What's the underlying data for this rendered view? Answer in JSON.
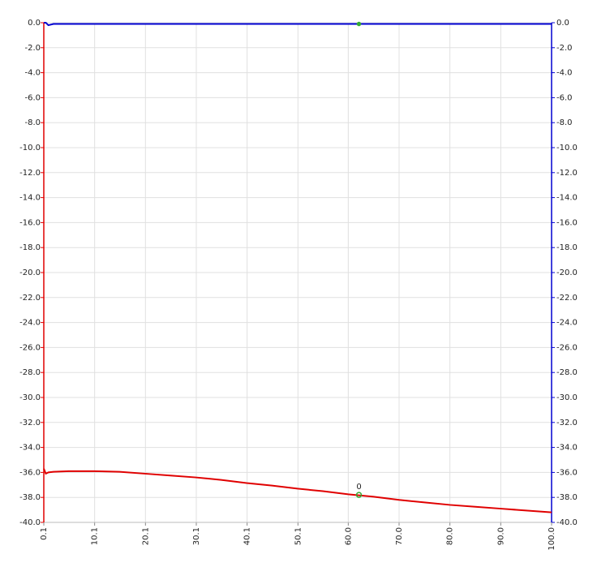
{
  "chart_data": {
    "type": "line",
    "x": [
      0.1,
      0.5,
      1,
      2,
      5,
      10,
      15,
      20,
      25,
      30,
      35,
      40,
      45,
      50,
      55,
      60,
      65,
      70,
      75,
      80,
      85,
      90,
      95,
      100
    ],
    "series": [
      {
        "color": "#e00000",
        "values": [
          -35.7,
          -36.1,
          -36.0,
          -35.95,
          -35.9,
          -35.9,
          -35.95,
          -36.1,
          -36.25,
          -36.4,
          -36.6,
          -36.85,
          -37.05,
          -37.3,
          -37.5,
          -37.75,
          -37.95,
          -38.2,
          -38.4,
          -38.6,
          -38.75,
          -38.9,
          -39.05,
          -39.2
        ]
      },
      {
        "color": "#0000d0",
        "axis": "y2",
        "values": [
          0,
          0,
          -0.2,
          -0.1,
          -0.1,
          -0.1,
          -0.1,
          -0.1,
          -0.1,
          -0.1,
          -0.1,
          -0.1,
          -0.1,
          -0.1,
          -0.1,
          -0.1,
          -0.1,
          -0.1,
          -0.1,
          -0.1,
          -0.1,
          -0.1,
          -0.1,
          -0.1
        ]
      }
    ],
    "markers": [
      {
        "x": 62.1,
        "value": -37.8,
        "label": "0",
        "color": "#33aa33"
      },
      {
        "x": 62.1,
        "value": -0.1,
        "axis": "y2",
        "color": "#33aa33"
      }
    ],
    "xlim": [
      0.1,
      100
    ],
    "xticks": [
      0.1,
      10.1,
      20.1,
      30.1,
      40.1,
      50.1,
      {
        "value": 60,
        "label": "60.0"
      },
      {
        "value": 70,
        "label": "70.0"
      },
      {
        "value": 80,
        "label": "80.0"
      },
      {
        "value": 90,
        "label": "90.0"
      },
      {
        "value": 100,
        "label": "100.0"
      }
    ],
    "ylim": [
      -40,
      0
    ],
    "yticks": [
      {
        "value": 0,
        "label": "0.0"
      },
      {
        "value": -2,
        "label": "-2.0"
      },
      {
        "value": -4,
        "label": "-4.0"
      },
      {
        "value": -6,
        "label": "-6.0"
      },
      {
        "value": -8,
        "label": "-8.0"
      },
      {
        "value": -10,
        "label": "-10.0"
      },
      {
        "value": -12,
        "label": "-12.0"
      },
      {
        "value": -14,
        "label": "-14.0"
      },
      {
        "value": -16,
        "label": "-16.0"
      },
      {
        "value": -18,
        "label": "-18.0"
      },
      {
        "value": -20,
        "label": "-20.0"
      },
      {
        "value": -22,
        "label": "-22.0"
      },
      {
        "value": -24,
        "label": "-24.0"
      },
      {
        "value": -26,
        "label": "-26.0"
      },
      {
        "value": -28,
        "label": "-28.0"
      },
      {
        "value": -30,
        "label": "-30.0"
      },
      {
        "value": -32,
        "label": "-32.0"
      },
      {
        "value": -34,
        "label": "-34.0"
      },
      {
        "value": -36,
        "label": "-36.0"
      },
      {
        "value": -38,
        "label": "-38.0"
      },
      {
        "value": -40,
        "label": "-40.0"
      }
    ],
    "y2lim": [
      -40,
      0
    ],
    "y2ticks": [
      {
        "value": 0,
        "label": "0.0"
      },
      {
        "value": -2,
        "label": "-2.0"
      },
      {
        "value": -4,
        "label": "-4.0"
      },
      {
        "value": -6,
        "label": "-6.0"
      },
      {
        "value": -8,
        "label": "-8.0"
      },
      {
        "value": -10,
        "label": "-10.0"
      },
      {
        "value": -12,
        "label": "-12.0"
      },
      {
        "value": -14,
        "label": "-14.0"
      },
      {
        "value": -16,
        "label": "-16.0"
      },
      {
        "value": -18,
        "label": "-18.0"
      },
      {
        "value": -20,
        "label": "-20.0"
      },
      {
        "value": -22,
        "label": "-22.0"
      },
      {
        "value": -24,
        "label": "-24.0"
      },
      {
        "value": -26,
        "label": "-26.0"
      },
      {
        "value": -28,
        "label": "-28.0"
      },
      {
        "value": -30,
        "label": "-30.0"
      },
      {
        "value": -32,
        "label": "-32.0"
      },
      {
        "value": -34,
        "label": "-34.0"
      },
      {
        "value": -36,
        "label": "-36.0"
      },
      {
        "value": -38,
        "label": "-38.0"
      },
      {
        "value": -40,
        "label": "-40.0"
      }
    ],
    "grid": true
  }
}
